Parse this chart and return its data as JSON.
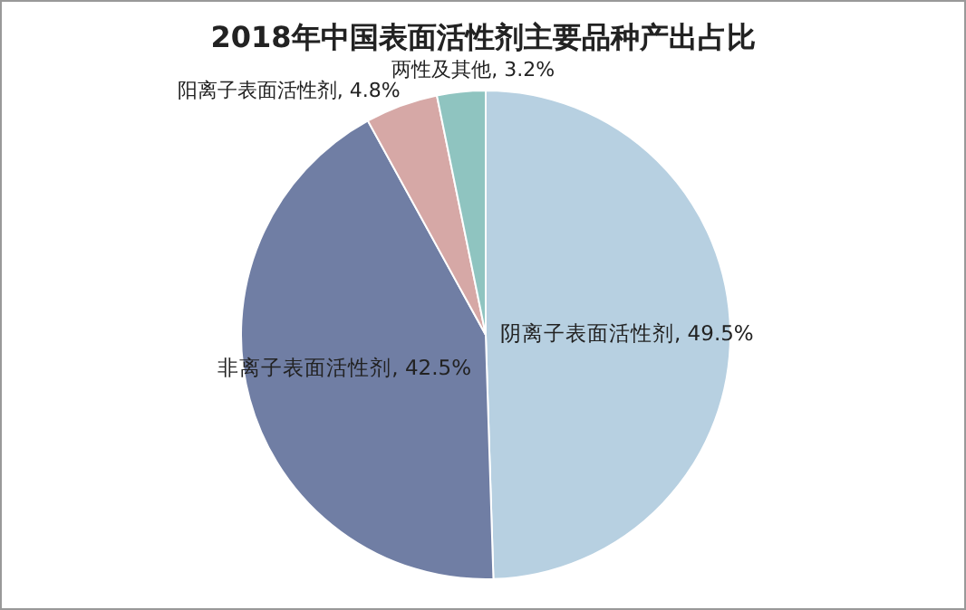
{
  "chart_data": {
    "type": "pie",
    "title": "2018年中国表面活性剂主要品种产出占比",
    "categories": [
      "阴离子表面活性剂",
      "非离子表面活性剂",
      "阳离子表面活性剂",
      "两性及其他"
    ],
    "values": [
      49.5,
      42.5,
      4.8,
      3.2
    ],
    "value_labels": [
      "49.5%",
      "42.5%",
      "4.8%",
      "3.2%"
    ],
    "colors": [
      "#b7d0e1",
      "#707ea4",
      "#d6a8a6",
      "#8fc4c0"
    ],
    "legend": false
  }
}
